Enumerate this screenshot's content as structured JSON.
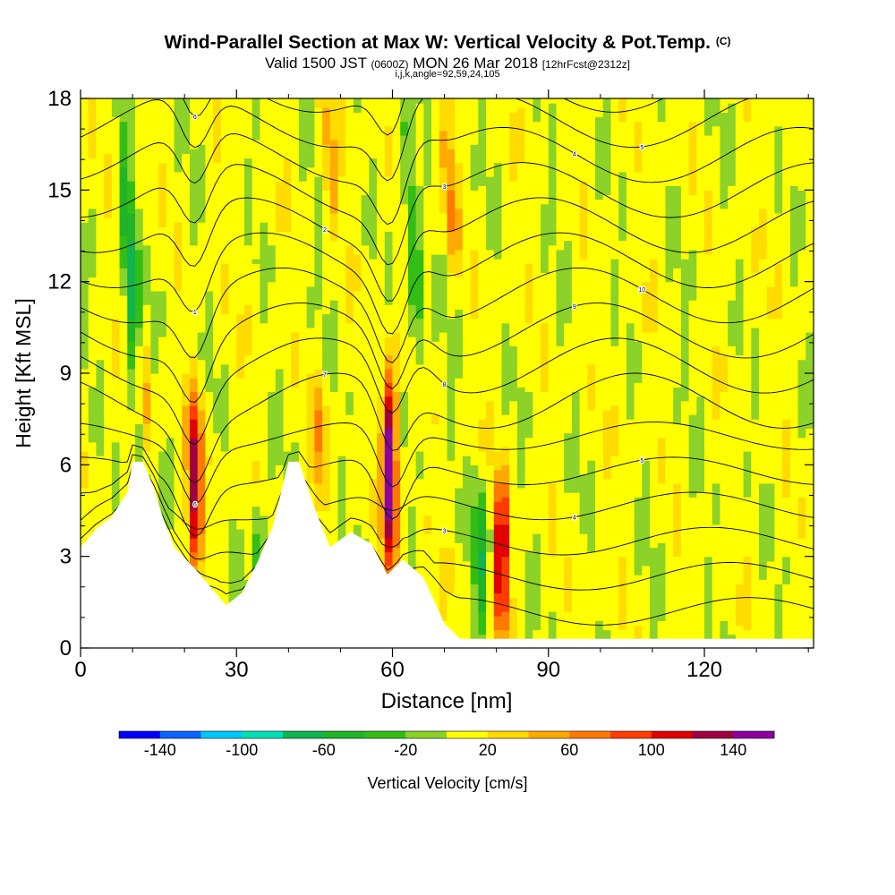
{
  "header": {
    "title": "Wind-Parallel Section at Max W: Vertical Velocity & Pot.Temp.",
    "copyright": "(C)",
    "valid_a": "Valid 1500 JST",
    "valid_utc": "(0600Z)",
    "valid_b": "MON 26 Mar 2018",
    "forecast": "[12hrFcst@2312z]",
    "section_info": "i,j,k,angle=92,59,24,105"
  },
  "chart_data": {
    "type": "heatmap",
    "xlabel": "Distance [nm]",
    "ylabel": "Height [Kft MSL]",
    "x_ticks": [
      0,
      30,
      60,
      90,
      120
    ],
    "y_ticks": [
      0,
      3,
      6,
      9,
      12,
      15,
      18
    ],
    "xlim": [
      0,
      141
    ],
    "ylim": [
      0,
      18
    ],
    "colorbar": {
      "label": "Vertical Velocity [cm/s]",
      "tick_labels": [
        "-140",
        "-100",
        "-60",
        "-20",
        "20",
        "60",
        "100",
        "140"
      ],
      "boundaries": [
        -160,
        -140,
        -120,
        -100,
        -80,
        -60,
        -40,
        -20,
        0,
        20,
        40,
        60,
        80,
        100,
        120,
        140,
        160
      ],
      "colors": [
        "#0000ff",
        "#0a64ff",
        "#00c8ff",
        "#00e0b4",
        "#10b450",
        "#20b428",
        "#32be14",
        "#8cd228",
        "#ffff00",
        "#ffdc00",
        "#ffaa00",
        "#ff7800",
        "#ff3c00",
        "#e00000",
        "#a00040",
        "#8c00a0"
      ]
    },
    "terrain_height_kft": [
      {
        "x": 0,
        "y": 3.3
      },
      {
        "x": 3,
        "y": 3.9
      },
      {
        "x": 6,
        "y": 4.3
      },
      {
        "x": 9,
        "y": 5.1
      },
      {
        "x": 10,
        "y": 6.1
      },
      {
        "x": 12,
        "y": 6.1
      },
      {
        "x": 14,
        "y": 5.3
      },
      {
        "x": 16,
        "y": 4.2
      },
      {
        "x": 18,
        "y": 3.3
      },
      {
        "x": 22,
        "y": 2.6
      },
      {
        "x": 25,
        "y": 2.0
      },
      {
        "x": 28,
        "y": 1.4
      },
      {
        "x": 31,
        "y": 1.8
      },
      {
        "x": 34,
        "y": 2.8
      },
      {
        "x": 37,
        "y": 4.0
      },
      {
        "x": 40,
        "y": 6.1
      },
      {
        "x": 42,
        "y": 6.1
      },
      {
        "x": 45,
        "y": 4.6
      },
      {
        "x": 48,
        "y": 3.3
      },
      {
        "x": 52,
        "y": 3.8
      },
      {
        "x": 56,
        "y": 3.4
      },
      {
        "x": 59,
        "y": 2.4
      },
      {
        "x": 62,
        "y": 2.9
      },
      {
        "x": 66,
        "y": 2.3
      },
      {
        "x": 70,
        "y": 0.8
      },
      {
        "x": 73,
        "y": 0.3
      },
      {
        "x": 141,
        "y": 0.3
      }
    ],
    "updraft_cores": [
      {
        "x": 22,
        "y_bottom": 2.6,
        "y_top": 8.4,
        "peak_cm_s": 120
      },
      {
        "x": 59.5,
        "y_bottom": 2.4,
        "y_top": 9.2,
        "peak_cm_s": 150
      },
      {
        "x": 81,
        "y_bottom": 0.3,
        "y_top": 5.6,
        "peak_cm_s": 120
      },
      {
        "x": 12,
        "y_bottom": 6.1,
        "y_top": 10.5,
        "peak_cm_s": 70
      },
      {
        "x": 46,
        "y_bottom": 4.8,
        "y_top": 8.8,
        "peak_cm_s": 50
      },
      {
        "x": 71,
        "y_bottom": 12.5,
        "y_top": 17.5,
        "peak_cm_s": 55
      },
      {
        "x": 48,
        "y_bottom": 14,
        "y_top": 18,
        "peak_cm_s": 45
      }
    ],
    "downdraft_cores": [
      {
        "x": 10,
        "y_bottom": 6.1,
        "y_top": 16.5,
        "peak_cm_s": -80
      },
      {
        "x": 64,
        "y_bottom": 8.5,
        "y_top": 18,
        "peak_cm_s": -50
      },
      {
        "x": 77,
        "y_bottom": 0.5,
        "y_top": 5.5,
        "peak_cm_s": -60
      },
      {
        "x": 34,
        "y_bottom": 2.0,
        "y_top": 5.0,
        "peak_cm_s": -40
      }
    ],
    "theta_contour_labels_K": [
      "1",
      "2",
      "3",
      "4",
      "5",
      "6",
      "7",
      "8",
      "9",
      "10"
    ]
  }
}
